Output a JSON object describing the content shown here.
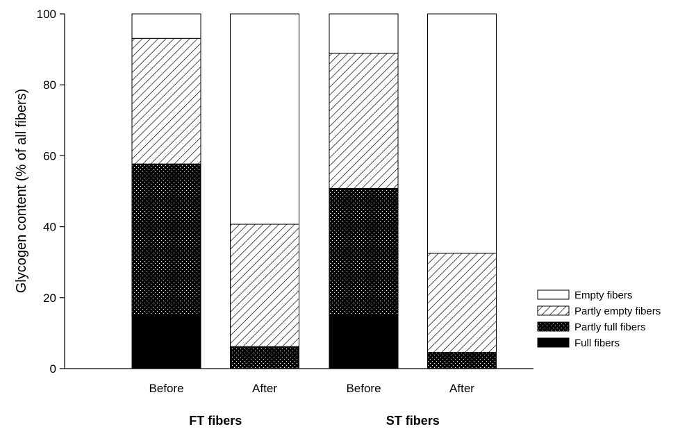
{
  "chart_data": {
    "type": "bar",
    "stacked": true,
    "ylabel": "Glycogen content (% of all fibers)",
    "ylim": [
      0,
      100
    ],
    "yticks": [
      0,
      20,
      40,
      60,
      80,
      100
    ],
    "grid": false,
    "legend_position": "right",
    "categories": [
      "Before",
      "After",
      "Before",
      "After"
    ],
    "groups": [
      {
        "label": "FT fibers",
        "categories": [
          0,
          1
        ]
      },
      {
        "label": "ST fibers",
        "categories": [
          2,
          3
        ]
      }
    ],
    "series": [
      {
        "name": "Full fibers",
        "pattern": "solid-black",
        "values": [
          15,
          0,
          15,
          0
        ]
      },
      {
        "name": "Partly full fibers",
        "pattern": "black-dotted",
        "values": [
          42.7,
          6.2,
          35.8,
          4.6
        ]
      },
      {
        "name": "Partly empty fibers",
        "pattern": "diagonal-hatch",
        "values": [
          35.4,
          34.5,
          38.1,
          27.9
        ]
      },
      {
        "name": "Empty fibers",
        "pattern": "white",
        "values": [
          6.9,
          59.3,
          11.1,
          67.5
        ]
      }
    ],
    "legend_order": [
      "Empty fibers",
      "Partly empty fibers",
      "Partly full fibers",
      "Full fibers"
    ]
  }
}
